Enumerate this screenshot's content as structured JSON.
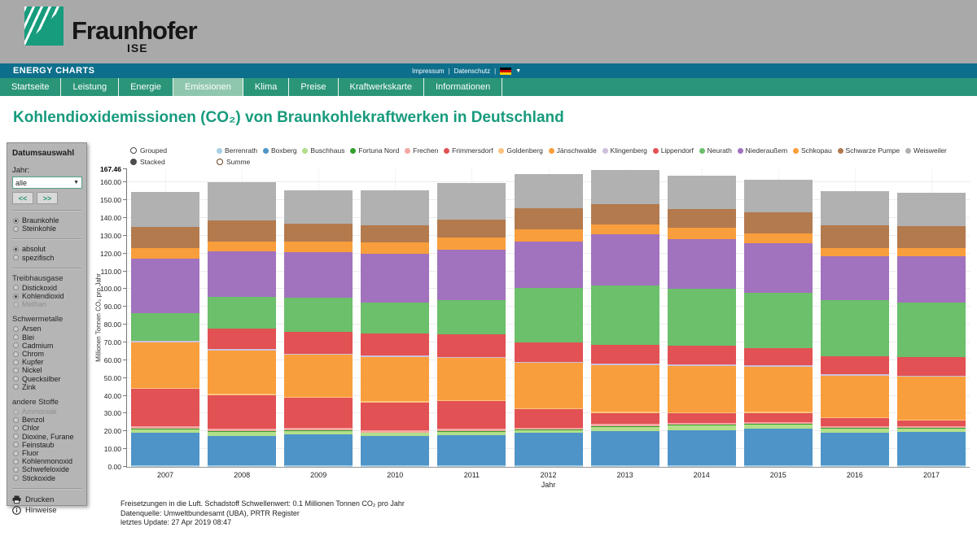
{
  "header": {
    "brand": "Fraunhofer",
    "brand_sub": "ISE"
  },
  "topbar": {
    "title": "ENERGY CHARTS",
    "links": [
      "Impressum",
      "Datenschutz"
    ],
    "language_flag": "german-flag"
  },
  "nav": {
    "tabs": [
      {
        "label": "Startseite",
        "active": false
      },
      {
        "label": "Leistung",
        "active": false
      },
      {
        "label": "Energie",
        "active": false
      },
      {
        "label": "Emissionen",
        "active": true
      },
      {
        "label": "Klima",
        "active": false
      },
      {
        "label": "Preise",
        "active": false
      },
      {
        "label": "Kraftwerkskarte",
        "active": false
      },
      {
        "label": "Informationen",
        "active": false
      }
    ]
  },
  "page": {
    "title": "Kohlendioxidemissionen (CO₂) von Braunkohlekraftwerken in Deutschland"
  },
  "sidebar": {
    "title": "Datumsauswahl",
    "year_label": "Jahr:",
    "year_value": "alle",
    "prev_label": "<<",
    "next_label": ">>",
    "groups": [
      {
        "heading": null,
        "divider_before": true,
        "options": [
          {
            "label": "Braunkohle",
            "selected": true
          },
          {
            "label": "Steinkohle",
            "selected": false
          }
        ]
      },
      {
        "heading": null,
        "divider_before": true,
        "options": [
          {
            "label": "absolut",
            "selected": true
          },
          {
            "label": "spezifisch",
            "selected": false
          }
        ]
      },
      {
        "heading": "Treibhausgase",
        "divider_before": true,
        "options": [
          {
            "label": "Distickoxid",
            "selected": false
          },
          {
            "label": "Kohlendioxid",
            "selected": true
          },
          {
            "label": "Methan",
            "selected": false,
            "disabled": true
          }
        ]
      },
      {
        "heading": "Schwermetalle",
        "divider_before": false,
        "options": [
          {
            "label": "Arsen"
          },
          {
            "label": "Blei"
          },
          {
            "label": "Cadmium"
          },
          {
            "label": "Chrom"
          },
          {
            "label": "Kupfer"
          },
          {
            "label": "Nickel"
          },
          {
            "label": "Quecksilber"
          },
          {
            "label": "Zink"
          }
        ]
      },
      {
        "heading": "andere Stoffe",
        "divider_before": false,
        "options": [
          {
            "label": "Ammoniak",
            "disabled": true
          },
          {
            "label": "Benzol"
          },
          {
            "label": "Chlor"
          },
          {
            "label": "Dioxine, Furane"
          },
          {
            "label": "Feinstaub"
          },
          {
            "label": "Fluor"
          },
          {
            "label": "Kohlenmonoxid"
          },
          {
            "label": "Schwefeloxide"
          },
          {
            "label": "Stickoxide"
          }
        ]
      }
    ],
    "actions": [
      {
        "label": "Drucken",
        "icon": "printer-icon"
      },
      {
        "label": "Hinweise",
        "icon": "info-icon"
      }
    ]
  },
  "chart": {
    "mode_options": [
      {
        "label": "Grouped",
        "selected": false
      },
      {
        "label": "Stacked",
        "selected": true
      }
    ],
    "summe_option": {
      "label": "Summe",
      "selected": false
    },
    "ymax_label": "167.46",
    "yticks": [
      "0.00",
      "10.00",
      "20.00",
      "30.00",
      "40.00",
      "50.00",
      "60.00",
      "70.00",
      "80.00",
      "90.00",
      "100.00",
      "110.00",
      "120.00",
      "130.00",
      "140.00",
      "150.00",
      "160.00"
    ],
    "footnotes": [
      "Freisetzungen in die Luft. Schadstoff Schwellenwert: 0.1 Millionen Tonnen CO₂ pro Jahr",
      "Datenquelle: Umweltbundesamt (UBA), PRTR Register",
      "letztes Update: 27 Apr 2019 08:47"
    ]
  },
  "chart_data": {
    "type": "bar",
    "stacked": true,
    "title": "Kohlendioxidemissionen (CO₂) von Braunkohlekraftwerken in Deutschland",
    "xlabel": "Jahr",
    "ylabel": "Millionen Tonnen CO₂ pro Jahr",
    "ylim": [
      0,
      167.46
    ],
    "grid": true,
    "legend_position": "top",
    "categories": [
      2007,
      2008,
      2009,
      2010,
      2011,
      2012,
      2013,
      2014,
      2015,
      2016,
      2017
    ],
    "series": [
      {
        "name": "Berrenrath",
        "color": "#a6cee3",
        "values": [
          1.0,
          1.0,
          0.9,
          0.9,
          0.9,
          0.9,
          0.8,
          0.8,
          0.8,
          0.8,
          0.8
        ]
      },
      {
        "name": "Boxberg",
        "color": "#4e94c8",
        "values": [
          18.0,
          16.5,
          17.3,
          16.5,
          17.0,
          18.3,
          19.5,
          20.0,
          20.5,
          18.5,
          19.0
        ]
      },
      {
        "name": "Buschhaus",
        "color": "#b2df8a",
        "values": [
          2.1,
          2.3,
          2.0,
          1.6,
          1.8,
          1.4,
          2.3,
          2.5,
          2.6,
          2.2,
          1.8
        ]
      },
      {
        "name": "Fortuna Nord",
        "color": "#33a02c",
        "values": [
          0.4,
          0.4,
          0.4,
          0.4,
          0.4,
          0.4,
          0.4,
          0.4,
          0.4,
          0.4,
          0.4
        ]
      },
      {
        "name": "Frechen",
        "color": "#f4a6a3",
        "values": [
          1.5,
          1.3,
          1.3,
          1.2,
          1.2,
          1.2,
          1.2,
          1.1,
          1.1,
          1.1,
          1.0
        ]
      },
      {
        "name": "Frimmersdorf",
        "color": "#e25153",
        "values": [
          20.9,
          18.7,
          16.9,
          15.7,
          15.6,
          10.2,
          6.2,
          5.2,
          5.0,
          4.3,
          3.0
        ]
      },
      {
        "name": "Goldenberg",
        "color": "#fdc37f",
        "values": [
          0.7,
          0.8,
          0.7,
          0.8,
          0.8,
          0.7,
          0.6,
          0.6,
          0.6,
          0.6,
          0.6
        ]
      },
      {
        "name": "Jänschwalde",
        "color": "#f99e3c",
        "values": [
          25.5,
          24.5,
          23.5,
          24.8,
          23.5,
          25.5,
          26.3,
          26.3,
          25.4,
          23.5,
          24.0
        ]
      },
      {
        "name": "Klingenberg",
        "color": "#cdc0dc",
        "values": [
          0.8,
          0.9,
          0.8,
          0.8,
          0.8,
          0.6,
          0.8,
          0.8,
          0.8,
          0.8,
          0.8
        ]
      },
      {
        "name": "Lippendorf",
        "color": "#e25153",
        "values": [
          0.0,
          11.3,
          12.2,
          12.2,
          12.8,
          11.0,
          10.5,
          10.5,
          9.5,
          9.9,
          10.2
        ]
      },
      {
        "name": "Neurath",
        "color": "#6cbf6b",
        "values": [
          15.7,
          18.0,
          19.0,
          17.6,
          18.8,
          30.5,
          33.6,
          32.0,
          31.4,
          31.6,
          30.8
        ]
      },
      {
        "name": "Niederaußem",
        "color": "#a172bd",
        "values": [
          30.8,
          25.5,
          25.9,
          27.4,
          28.5,
          26.3,
          28.7,
          27.9,
          27.8,
          25.0,
          26.0
        ]
      },
      {
        "name": "Schkopau",
        "color": "#f99e3c",
        "values": [
          5.8,
          5.8,
          6.1,
          6.4,
          7.0,
          6.5,
          5.6,
          6.4,
          5.6,
          4.6,
          4.6
        ]
      },
      {
        "name": "Schwarze Pumpe",
        "color": "#b37a4e",
        "values": [
          11.9,
          11.8,
          9.7,
          9.6,
          10.2,
          12.2,
          11.4,
          10.7,
          11.9,
          12.5,
          12.3
        ]
      },
      {
        "name": "Weisweiler",
        "color": "#b1b1b1",
        "values": [
          19.7,
          21.6,
          19.1,
          19.9,
          20.3,
          19.3,
          19.3,
          18.5,
          18.3,
          19.2,
          19.0
        ]
      }
    ]
  }
}
